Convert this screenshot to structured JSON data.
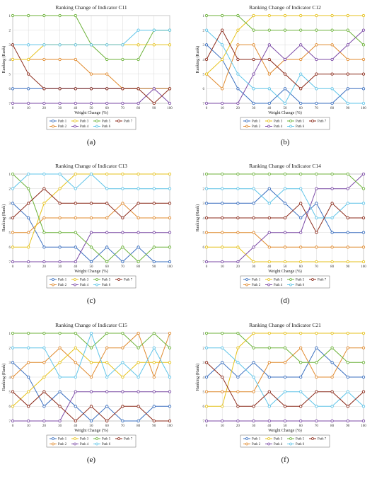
{
  "colors": {
    "Path 1": "#3a6fbf",
    "Path 2": "#e08a2e",
    "Path 3": "#e6c21c",
    "Path 4": "#7b4aa6",
    "Path 5": "#6cb23a",
    "Path 6": "#5fc4e8",
    "Path 7": "#8b2a1a"
  },
  "chart_data": [
    {
      "type": "line",
      "label": "(a)",
      "title": "Ranking Change of Indicator C11",
      "xlabel": "Weight Change (%)",
      "ylabel": "Ranking (Rank)",
      "x": [
        0,
        10,
        20,
        30,
        40,
        50,
        60,
        70,
        80,
        90,
        100
      ],
      "ylim": [
        1,
        7
      ],
      "grid": true,
      "legend": "bottom",
      "series": [
        {
          "name": "Path 1",
          "values": [
            6,
            6,
            6,
            6,
            6,
            6,
            6,
            6,
            6,
            6,
            6
          ]
        },
        {
          "name": "Path 2",
          "values": [
            4,
            4,
            4,
            4,
            4,
            5,
            5,
            6,
            6,
            6,
            6
          ]
        },
        {
          "name": "Path 3",
          "values": [
            4,
            4,
            3,
            3,
            3,
            3,
            3,
            3,
            3,
            3,
            3
          ]
        },
        {
          "name": "Path 4",
          "values": [
            7,
            7,
            7,
            7,
            7,
            7,
            7,
            7,
            7,
            6,
            7
          ]
        },
        {
          "name": "Path 5",
          "values": [
            1,
            1,
            1,
            1,
            1,
            3,
            4,
            4,
            4,
            2,
            2
          ]
        },
        {
          "name": "Path 6",
          "values": [
            3,
            3,
            3,
            3,
            3,
            3,
            3,
            3,
            2,
            2,
            2
          ]
        },
        {
          "name": "Path 7",
          "values": [
            3,
            5,
            6,
            6,
            6,
            6,
            6,
            6,
            6,
            7,
            6
          ]
        }
      ]
    },
    {
      "type": "line",
      "label": "(b)",
      "title": "Ranking Change of Indicator C12",
      "xlabel": "Weight Change (%)",
      "ylabel": "Ranking (Rank)",
      "x": [
        0,
        10,
        20,
        30,
        40,
        50,
        60,
        70,
        80,
        90,
        100
      ],
      "ylim": [
        1,
        7
      ],
      "grid": true,
      "legend": "bottom",
      "series": [
        {
          "name": "Path 1",
          "values": [
            3,
            4,
            6,
            7,
            7,
            6,
            7,
            7,
            7,
            6,
            6
          ]
        },
        {
          "name": "Path 2",
          "values": [
            5,
            6,
            3,
            3,
            5,
            4,
            4,
            3,
            3,
            4,
            4
          ]
        },
        {
          "name": "Path 3",
          "values": [
            5,
            4,
            2,
            1,
            1,
            1,
            1,
            1,
            1,
            1,
            1
          ]
        },
        {
          "name": "Path 4",
          "values": [
            7,
            7,
            7,
            5,
            3,
            4,
            3,
            4,
            4,
            3,
            2
          ]
        },
        {
          "name": "Path 5",
          "values": [
            1,
            1,
            1,
            2,
            2,
            2,
            2,
            2,
            2,
            2,
            3
          ]
        },
        {
          "name": "Path 6",
          "values": [
            2,
            3,
            5,
            6,
            6,
            7,
            5,
            6,
            6,
            7,
            7
          ]
        },
        {
          "name": "Path 7",
          "values": [
            4,
            2,
            4,
            4,
            4,
            5,
            6,
            5,
            5,
            5,
            5
          ]
        }
      ]
    },
    {
      "type": "line",
      "label": "(c)",
      "title": "Ranking Change of Indicator C13",
      "xlabel": "Weight Change (%)",
      "ylabel": "Ranking (Rank)",
      "x": [
        0,
        10,
        20,
        30,
        40,
        50,
        60,
        70,
        80,
        90,
        100
      ],
      "ylim": [
        1,
        7
      ],
      "grid": true,
      "legend": "bottom",
      "series": [
        {
          "name": "Path 1",
          "values": [
            3,
            4,
            6,
            6,
            6,
            7,
            6,
            7,
            6,
            7,
            7
          ]
        },
        {
          "name": "Path 2",
          "values": [
            5,
            5,
            4,
            4,
            4,
            4,
            4,
            3,
            4,
            4,
            4
          ]
        },
        {
          "name": "Path 3",
          "values": [
            6,
            6,
            3,
            2,
            1,
            1,
            1,
            1,
            1,
            1,
            1
          ]
        },
        {
          "name": "Path 4",
          "values": [
            7,
            7,
            7,
            7,
            7,
            5,
            5,
            5,
            5,
            5,
            5
          ]
        },
        {
          "name": "Path 5",
          "values": [
            1,
            2,
            5,
            5,
            5,
            6,
            7,
            6,
            7,
            6,
            6
          ]
        },
        {
          "name": "Path 6",
          "values": [
            2,
            1,
            1,
            1,
            2,
            1,
            2,
            2,
            2,
            2,
            2
          ]
        },
        {
          "name": "Path 7",
          "values": [
            4,
            3,
            2,
            3,
            3,
            3,
            3,
            4,
            3,
            3,
            3
          ]
        }
      ]
    },
    {
      "type": "line",
      "label": "(d)",
      "title": "Ranking Change of Indicator C14",
      "xlabel": "Weight Change (%)",
      "ylabel": "Ranking (Rank)",
      "x": [
        0,
        10,
        20,
        30,
        40,
        50,
        60,
        70,
        80,
        90,
        100
      ],
      "ylim": [
        1,
        7
      ],
      "grid": true,
      "legend": "bottom",
      "series": [
        {
          "name": "Path 1",
          "values": [
            3,
            3,
            3,
            3,
            2,
            3,
            4,
            3,
            5,
            5,
            5
          ]
        },
        {
          "name": "Path 2",
          "values": [
            5,
            5,
            5,
            5,
            6,
            6,
            6,
            6,
            6,
            6,
            6
          ]
        },
        {
          "name": "Path 3",
          "values": [
            6,
            6,
            6,
            7,
            7,
            7,
            7,
            7,
            7,
            7,
            7
          ]
        },
        {
          "name": "Path 4",
          "values": [
            7,
            7,
            7,
            6,
            5,
            5,
            5,
            2,
            2,
            2,
            1
          ]
        },
        {
          "name": "Path 5",
          "values": [
            1,
            1,
            1,
            1,
            1,
            1,
            1,
            1,
            1,
            1,
            2
          ]
        },
        {
          "name": "Path 6",
          "values": [
            2,
            2,
            2,
            2,
            3,
            2,
            2,
            4,
            4,
            3,
            3
          ]
        },
        {
          "name": "Path 7",
          "values": [
            4,
            4,
            4,
            4,
            4,
            4,
            3,
            5,
            3,
            4,
            4
          ]
        }
      ]
    },
    {
      "type": "line",
      "label": "(e)",
      "title": "Ranking Change of Indicator C15",
      "xlabel": "Weight Change (%)",
      "ylabel": "Ranking (Rank)",
      "x": [
        0,
        10,
        20,
        30,
        40,
        50,
        60,
        70,
        80,
        90,
        100
      ],
      "ylim": [
        1,
        7
      ],
      "grid": true,
      "legend": "bottom",
      "series": [
        {
          "name": "Path 1",
          "values": [
            3,
            4,
            6,
            5,
            6,
            7,
            6,
            7,
            7,
            6,
            6
          ]
        },
        {
          "name": "Path 2",
          "values": [
            4,
            3,
            3,
            2,
            3,
            4,
            2,
            2,
            1,
            4,
            1
          ]
        },
        {
          "name": "Path 3",
          "values": [
            6,
            5,
            4,
            3,
            2,
            3,
            3,
            4,
            3,
            3,
            3
          ]
        },
        {
          "name": "Path 4",
          "values": [
            7,
            7,
            7,
            7,
            5,
            5,
            5,
            5,
            5,
            5,
            5
          ]
        },
        {
          "name": "Path 5",
          "values": [
            1,
            1,
            1,
            1,
            1,
            2,
            1,
            1,
            2,
            1,
            2
          ]
        },
        {
          "name": "Path 6",
          "values": [
            2,
            2,
            2,
            4,
            4,
            1,
            4,
            3,
            4,
            2,
            4
          ]
        },
        {
          "name": "Path 7",
          "values": [
            5,
            6,
            5,
            6,
            7,
            6,
            7,
            6,
            6,
            7,
            7
          ]
        }
      ]
    },
    {
      "type": "line",
      "label": "(f)",
      "title": "Ranking Change of Indicator C21",
      "xlabel": "Weight Change (%)",
      "ylabel": "Ranking (Rank)",
      "x": [
        0,
        10,
        20,
        30,
        40,
        50,
        60,
        70,
        80,
        90,
        100
      ],
      "ylim": [
        1,
        7
      ],
      "grid": true,
      "legend": "bottom",
      "series": [
        {
          "name": "Path 1",
          "values": [
            4,
            3,
            4,
            3,
            4,
            4,
            4,
            2,
            3,
            4,
            4
          ]
        },
        {
          "name": "Path 2",
          "values": [
            5,
            5,
            5,
            5,
            3,
            3,
            2,
            4,
            4,
            2,
            2
          ]
        },
        {
          "name": "Path 3",
          "values": [
            6,
            6,
            2,
            1,
            1,
            1,
            1,
            1,
            1,
            1,
            1
          ]
        },
        {
          "name": "Path 4",
          "values": [
            7,
            7,
            7,
            7,
            7,
            7,
            7,
            7,
            7,
            7,
            7
          ]
        },
        {
          "name": "Path 5",
          "values": [
            1,
            1,
            1,
            2,
            2,
            2,
            3,
            3,
            2,
            3,
            3
          ]
        },
        {
          "name": "Path 6",
          "values": [
            2,
            2,
            3,
            4,
            6,
            5,
            5,
            6,
            6,
            5,
            6
          ]
        },
        {
          "name": "Path 7",
          "values": [
            3,
            4,
            6,
            6,
            5,
            6,
            6,
            5,
            5,
            6,
            5
          ]
        }
      ]
    }
  ]
}
